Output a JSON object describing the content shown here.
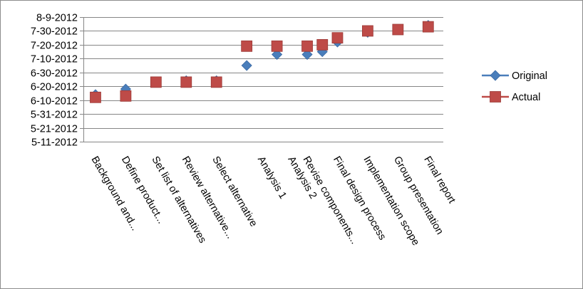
{
  "chart_data": {
    "type": "scatter",
    "title": "",
    "xlabel": "",
    "ylabel": "",
    "y_tick_labels": [
      "8-9-2012",
      "7-30-2012",
      "7-20-2012",
      "7-10-2012",
      "6-30-2012",
      "6-20-2012",
      "6-10-2012",
      "5-31-2012",
      "5-21-2012",
      "5-11-2012"
    ],
    "y_tick_values": [
      "2012-08-09",
      "2012-07-30",
      "2012-07-20",
      "2012-07-10",
      "2012-06-30",
      "2012-06-20",
      "2012-06-10",
      "2012-05-31",
      "2012-05-21",
      "2012-05-11"
    ],
    "ylim": [
      "2012-05-11",
      "2012-08-09"
    ],
    "grid": "horizontal",
    "legend_position": "right",
    "categories": [
      {
        "label": "Background and...",
        "x": 1
      },
      {
        "label": "Define product...",
        "x": 2
      },
      {
        "label": "Set list of alternatives",
        "x": 3
      },
      {
        "label": "Review alternative...",
        "x": 4
      },
      {
        "label": "Select alternative",
        "x": 5
      },
      {
        "label": "Analysis 1",
        "x": 6.5
      },
      {
        "label": "Analysis 2",
        "x": 7.5
      },
      {
        "label": "Revise components...",
        "x": 8
      },
      {
        "label": "Final design process",
        "x": 9
      },
      {
        "label": "Implementation scope",
        "x": 10
      },
      {
        "label": "Group presentation",
        "x": 11
      },
      {
        "label": "Final report",
        "x": 12
      }
    ],
    "series": [
      {
        "name": "Original",
        "color": "#4a7ebb",
        "marker": "diamond",
        "points": [
          {
            "x": 1,
            "y": "2012-06-14"
          },
          {
            "x": 2,
            "y": "2012-06-18"
          },
          {
            "x": 3,
            "y": "2012-06-23"
          },
          {
            "x": 4,
            "y": "2012-06-24"
          },
          {
            "x": 5,
            "y": "2012-06-24"
          },
          {
            "x": 6,
            "y": "2012-07-05"
          },
          {
            "x": 7,
            "y": "2012-07-13"
          },
          {
            "x": 8,
            "y": "2012-07-13"
          },
          {
            "x": 8.5,
            "y": "2012-07-15"
          },
          {
            "x": 9,
            "y": "2012-07-22"
          },
          {
            "x": 10,
            "y": "2012-07-29"
          },
          {
            "x": 11,
            "y": "2012-07-31"
          },
          {
            "x": 12,
            "y": "2012-08-03"
          }
        ]
      },
      {
        "name": "Actual",
        "color": "#be4b48",
        "marker": "square",
        "points": [
          {
            "x": 1,
            "y": "2012-06-12"
          },
          {
            "x": 2,
            "y": "2012-06-13"
          },
          {
            "x": 3,
            "y": "2012-06-23"
          },
          {
            "x": 4,
            "y": "2012-06-23"
          },
          {
            "x": 5,
            "y": "2012-06-23"
          },
          {
            "x": 6,
            "y": "2012-07-19"
          },
          {
            "x": 7,
            "y": "2012-07-19"
          },
          {
            "x": 8,
            "y": "2012-07-19"
          },
          {
            "x": 8.5,
            "y": "2012-07-20"
          },
          {
            "x": 9,
            "y": "2012-07-25"
          },
          {
            "x": 10,
            "y": "2012-07-30"
          },
          {
            "x": 11,
            "y": "2012-07-31"
          },
          {
            "x": 12,
            "y": "2012-08-02"
          }
        ]
      }
    ],
    "legend": [
      {
        "label": "Original",
        "color": "#4a7ebb",
        "marker": "diamond"
      },
      {
        "label": "Actual",
        "color": "#be4b48",
        "marker": "square"
      }
    ]
  }
}
